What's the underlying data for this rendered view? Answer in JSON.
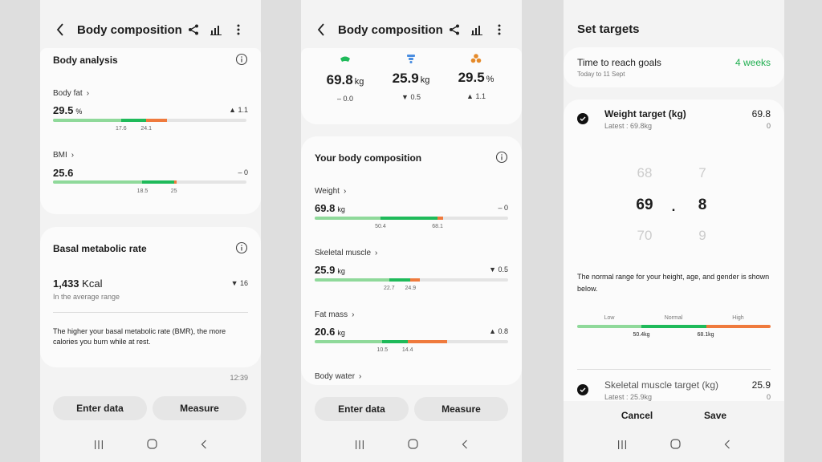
{
  "colors": {
    "green_light": "#8fd99a",
    "green": "#1fba5a",
    "orange": "#ef7a3d",
    "track": "#e4e4e4",
    "accent_text": "#1fae4f"
  },
  "screen1": {
    "title": "Body composition",
    "body_analysis": {
      "heading": "Body analysis",
      "body_fat": {
        "label": "Body fat",
        "value": "29.5",
        "unit": "%",
        "change": "1.1",
        "marker": 29.5,
        "range_min": 0,
        "range_max": 50,
        "normal": [
          17.6,
          24.1
        ],
        "ticks": [
          "17.6",
          "24.1"
        ]
      },
      "bmi": {
        "label": "BMI",
        "value": "25.6",
        "unit": "",
        "change": "0",
        "marker": 25.6,
        "range_min": 0,
        "range_max": 40,
        "normal": [
          18.5,
          25
        ],
        "ticks": [
          "18.5",
          "25"
        ]
      }
    },
    "bmr": {
      "heading": "Basal metabolic rate",
      "value": "1,433",
      "unit": "Kcal",
      "sub": "In the average range",
      "change": "16",
      "description": "The higher your basal metabolic rate (BMR), the more calories you burn while at rest."
    },
    "time": "12:39",
    "enter_label": "Enter data",
    "measure_label": "Measure"
  },
  "screen2": {
    "title": "Body composition",
    "summary": [
      {
        "icon": "weight-icon",
        "value": "69.8",
        "unit": "kg",
        "change": "0.0",
        "dir": "flat"
      },
      {
        "icon": "skeletal-muscle-icon",
        "value": "25.9",
        "unit": "kg",
        "change": "0.5",
        "dir": "down"
      },
      {
        "icon": "fat-icon",
        "value": "29.5",
        "unit": "%",
        "change": "1.1",
        "dir": "up"
      }
    ],
    "composition": {
      "heading": "Your body composition",
      "weight": {
        "label": "Weight",
        "value": "69.8",
        "unit": "kg",
        "change": "0",
        "marker": 69.8,
        "range_min": 30,
        "range_max": 90,
        "normal": [
          50.4,
          68.1
        ],
        "ticks": [
          "50.4",
          "68.1"
        ]
      },
      "skeletal": {
        "label": "Skeletal muscle",
        "value": "25.9",
        "unit": "kg",
        "change": "0.5",
        "marker": 25.9,
        "range_min": 15,
        "range_max": 35,
        "normal": [
          22.7,
          24.9
        ],
        "ticks": [
          "22.7",
          "24.9"
        ]
      },
      "fat_mass": {
        "label": "Fat mass",
        "value": "20.6",
        "unit": "kg",
        "change": "0.8",
        "marker": 20.6,
        "range_min": 0,
        "range_max": 30,
        "normal": [
          10.5,
          14.4
        ],
        "ticks": [
          "10.5",
          "14.4"
        ]
      },
      "water_label": "Body water"
    },
    "enter_label": "Enter data",
    "measure_label": "Measure"
  },
  "screen3": {
    "title": "Set targets",
    "time_label": "Time to reach goals",
    "time_value": "4 weeks",
    "time_sub": "Today to 11 Sept",
    "weight_target": {
      "label": "Weight target (kg)",
      "latest": "Latest : 69.8kg",
      "value": "69.8",
      "zero": "0"
    },
    "picker": {
      "int_prev": "68",
      "int_cur": "69",
      "int_next": "70",
      "sep": ".",
      "dec_prev": "7",
      "dec_cur": "8",
      "dec_next": "9"
    },
    "normal_text": "The normal range for your height, age, and gender is shown below.",
    "range_labels": {
      "low": "Low",
      "normal": "Normal",
      "high": "High",
      "t1": "50.4kg",
      "t2": "68.1kg"
    },
    "skeletal_target": {
      "label": "Skeletal muscle target (kg)",
      "latest": "Latest : 25.9kg",
      "value": "25.9",
      "zero": "0"
    },
    "cancel_label": "Cancel",
    "save_label": "Save"
  }
}
